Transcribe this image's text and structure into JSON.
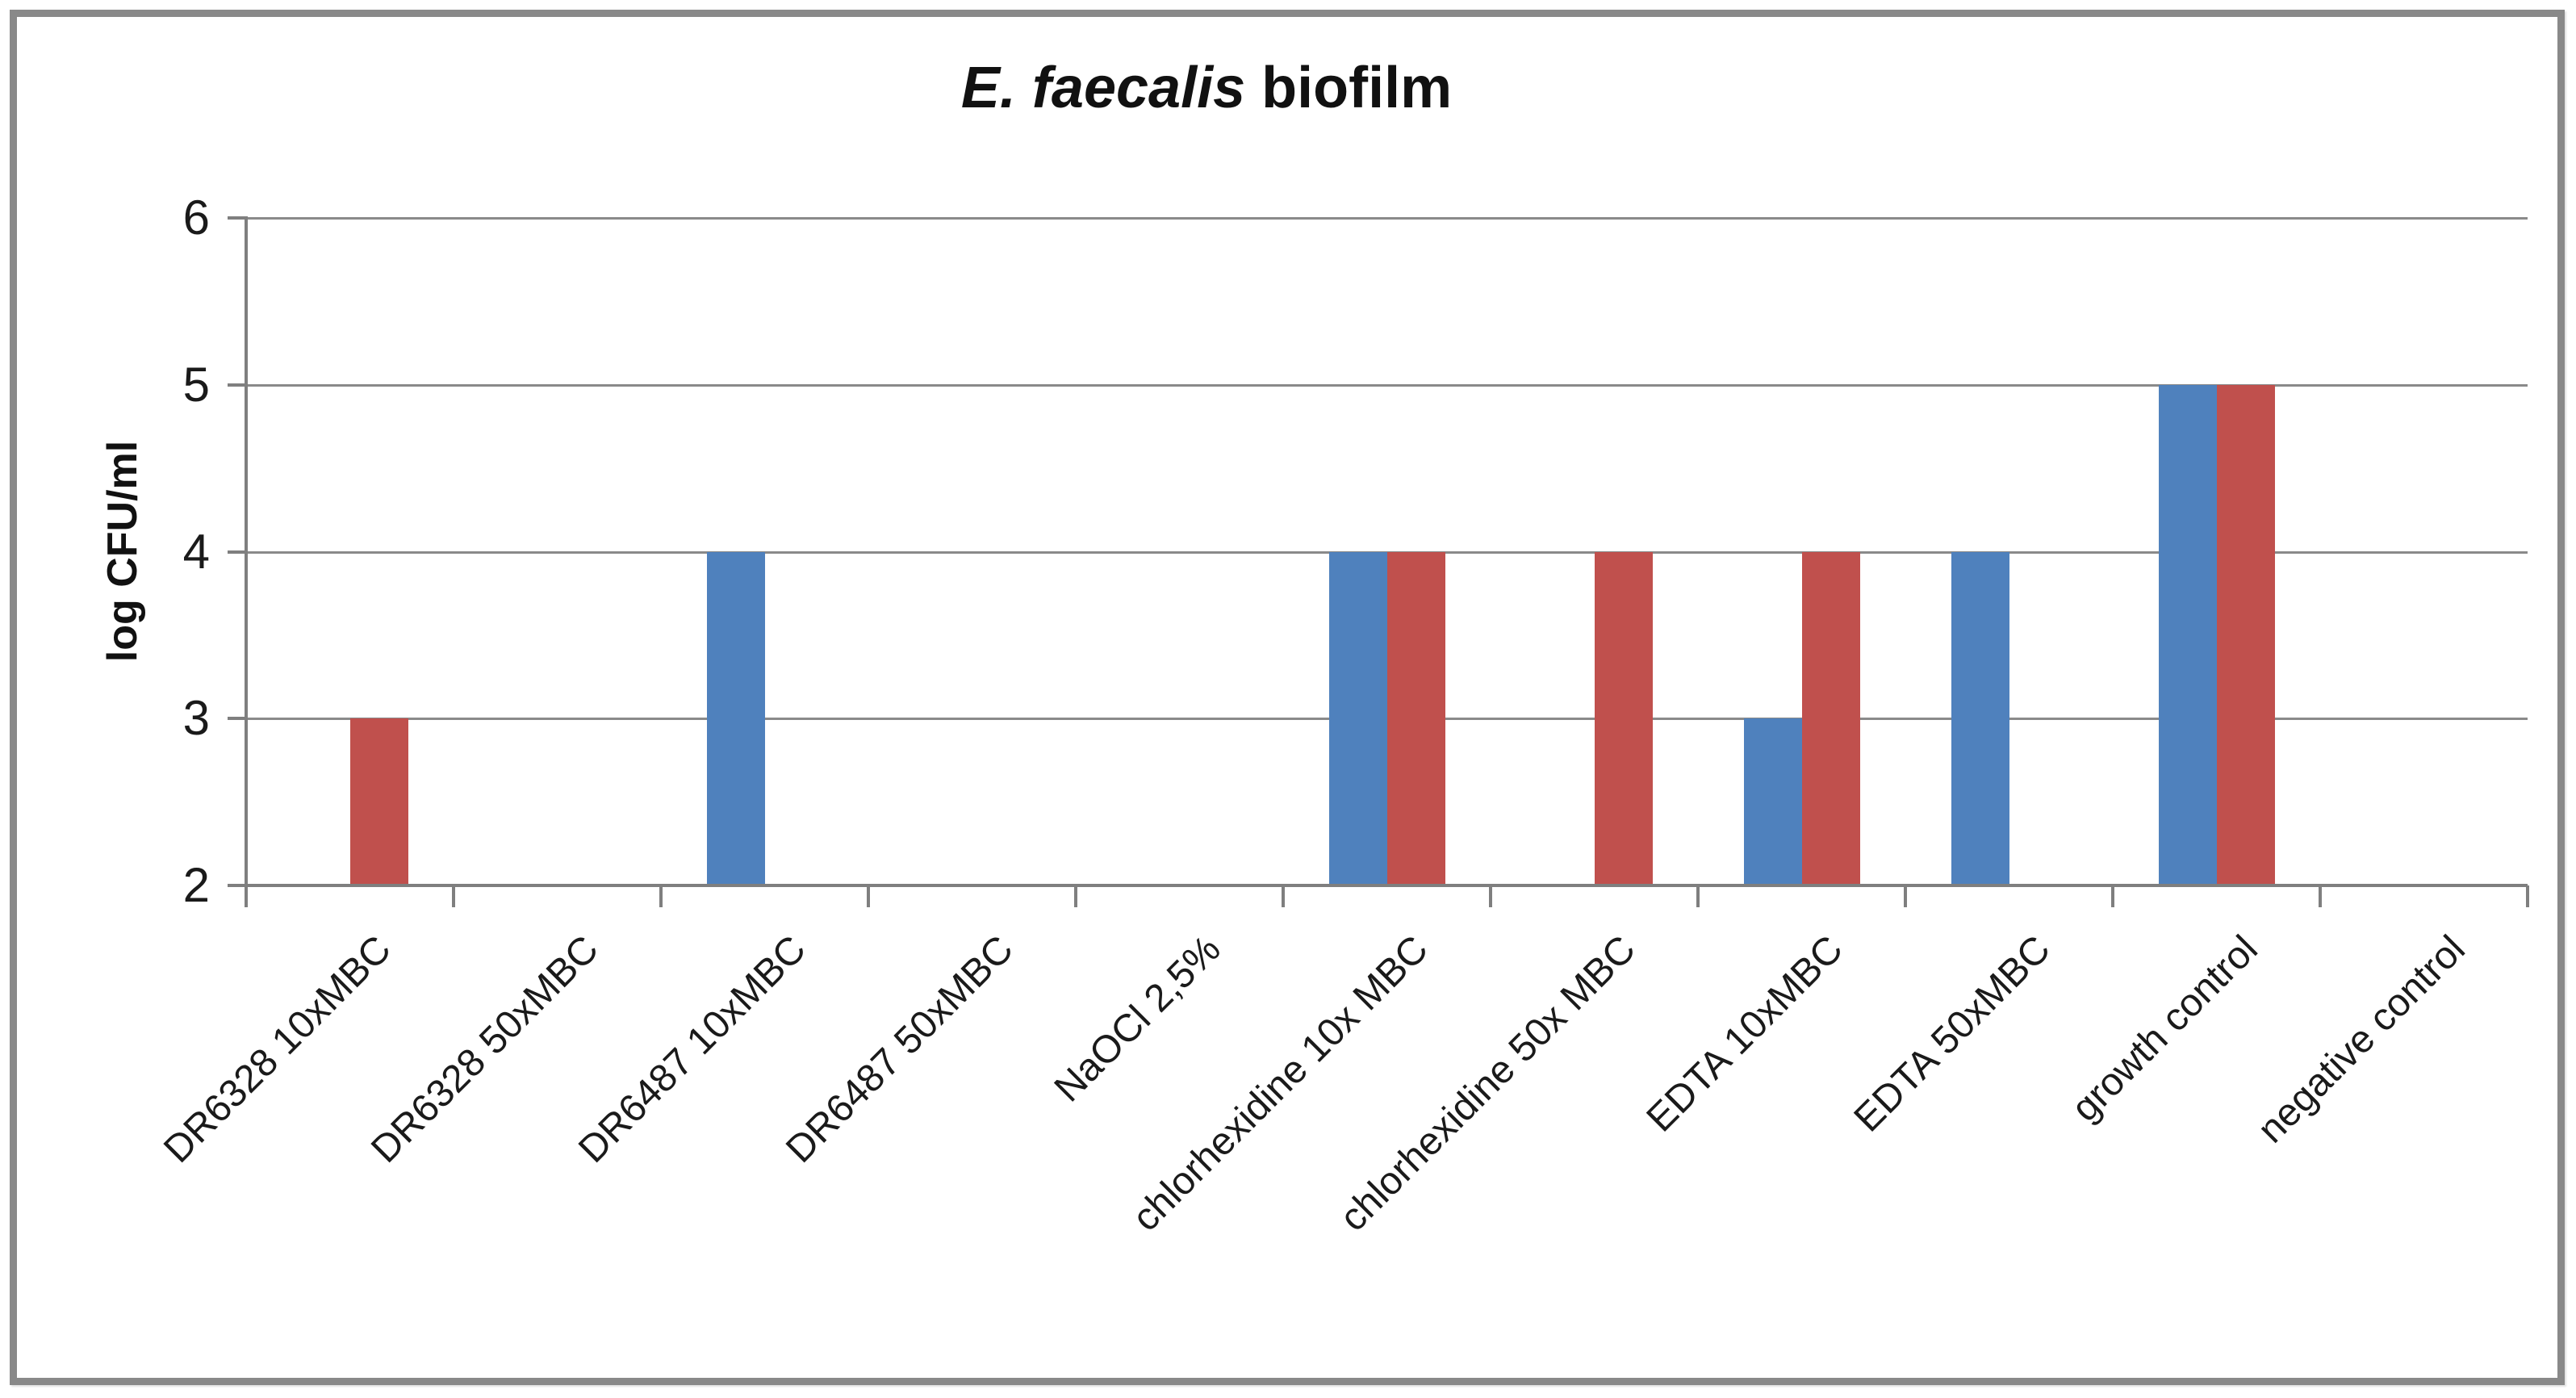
{
  "chart_data": {
    "type": "bar",
    "title": "E. faecalis biofilm",
    "title_italic": "E. faecalis",
    "title_rest": " biofilm",
    "xlabel": "",
    "ylabel": "log CFU/ml",
    "ylim": [
      2,
      6
    ],
    "yticks": [
      6,
      5,
      4,
      3,
      2
    ],
    "baseline": 2,
    "grid": true,
    "legend": "none",
    "categories": [
      "DR6328 10xMBC",
      "DR6328 50xMBC",
      "DR6487 10xMBC",
      "DR6487 50xMBC",
      "NaOCl 2,5%",
      "chlorhexidine 10x MBC",
      "chlorhexidine 50x MBC",
      "EDTA 10xMBC",
      "EDTA 50xMBC",
      "growth control",
      "negative control"
    ],
    "series": [
      {
        "name": "series-blue",
        "color": "#4F81BD",
        "values": [
          null,
          null,
          4,
          null,
          null,
          4,
          null,
          3,
          4,
          5,
          null
        ]
      },
      {
        "name": "series-red",
        "color": "#C0504D",
        "values": [
          3,
          null,
          null,
          null,
          null,
          4,
          4,
          4,
          null,
          5,
          null
        ]
      }
    ],
    "colors": {
      "axis": "#7F7F7F",
      "gridline": "#8A8A8A",
      "text": "#1A1A1A",
      "frame_border": "#898989",
      "background": "#FFFFFF"
    }
  }
}
